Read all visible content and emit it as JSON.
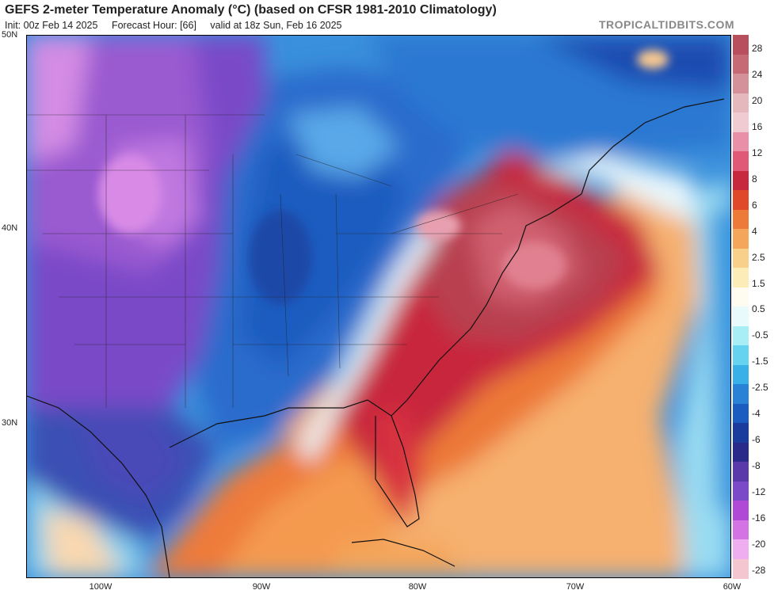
{
  "header": {
    "title": "GEFS 2-meter Temperature Anomaly (°C) (based on CFSR 1981-2010 Climatology)",
    "init": "Init: 00z Feb 14 2025",
    "forecast_hour": "Forecast Hour: [66]",
    "valid": "valid at 18z Sun, Feb 16 2025",
    "brand": "TROPICALTIDBITS.COM"
  },
  "axes": {
    "lat_labels": [
      "50N",
      "40N",
      "30N"
    ],
    "lon_labels": [
      "100W",
      "90W",
      "80W",
      "70W",
      "60W"
    ]
  },
  "colorbar": {
    "labels": [
      "28",
      "24",
      "20",
      "16",
      "12",
      "8",
      "6",
      "4",
      "2.5",
      "1.5",
      "0.5",
      "-0.5",
      "-1.5",
      "-2.5",
      "-4",
      "-6",
      "-8",
      "-12",
      "-16",
      "-20",
      "-28"
    ],
    "colors": [
      "#b84f5c",
      "#c66a76",
      "#d4919a",
      "#e4b8bd",
      "#f0ccd2",
      "#ea8fa8",
      "#e05a78",
      "#c8283e",
      "#e04a2a",
      "#ee7a3a",
      "#f4a65a",
      "#f8d08c",
      "#fcecb8",
      "#fefcf0",
      "#e8fafc",
      "#a8eef6",
      "#66d4f0",
      "#3ab0e8",
      "#2a82d6",
      "#1a5cc0",
      "#1a3c9c",
      "#2a2a8a",
      "#5a3aaa",
      "#7a4ac8",
      "#b04ad6",
      "#d474e4",
      "#eeaef0",
      "#f4c6d0"
    ]
  },
  "map": {
    "dominant_regions": [
      {
        "name": "Great Plains / Rockies cold anomaly",
        "color": "#7a4ac8"
      },
      {
        "name": "Midwest / Great Lakes cold anomaly",
        "color": "#2a82d6"
      },
      {
        "name": "Mid-Atlantic / Southeast warm anomaly",
        "color": "#c8283e"
      },
      {
        "name": "Gulf / Atlantic warm anomaly",
        "color": "#ee7a3a"
      }
    ]
  }
}
